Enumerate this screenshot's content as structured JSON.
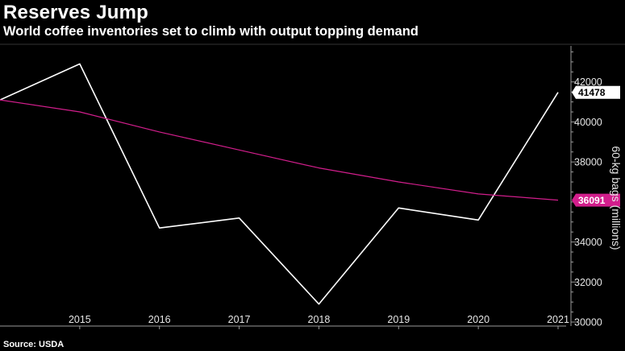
{
  "chart_data": {
    "type": "line",
    "title": "Reserves Jump",
    "subtitle": "World coffee inventories set to climb with output topping demand",
    "source": "Source: USDA",
    "ylabel": "60-kg bags (millions)",
    "xlabel": "",
    "xlim": [
      2014,
      2021
    ],
    "ylim": [
      29800,
      43800
    ],
    "x_ticks": [
      "2015",
      "2016",
      "2017",
      "2018",
      "2019",
      "2020",
      "2021"
    ],
    "y_ticks": [
      "30000",
      "32000",
      "34000",
      "36000",
      "38000",
      "40000",
      "42000"
    ],
    "y_tick_values": [
      30000,
      32000,
      34000,
      36000,
      38000,
      40000,
      42000
    ],
    "grid": false,
    "series": [
      {
        "color": "#ffffff",
        "x": [
          2014,
          2015,
          2016,
          2017,
          2018,
          2019,
          2020,
          2021
        ],
        "values": [
          41100,
          42900,
          34700,
          35200,
          30900,
          35700,
          35100,
          41478
        ],
        "last_value_label": "41478"
      },
      {
        "color": "#d21e8c",
        "x": [
          2014,
          2015,
          2016,
          2017,
          2018,
          2019,
          2020,
          2021
        ],
        "values": [
          41100,
          40500,
          39500,
          38600,
          37700,
          37000,
          36400,
          36091
        ],
        "last_value_label": "36091"
      }
    ]
  }
}
